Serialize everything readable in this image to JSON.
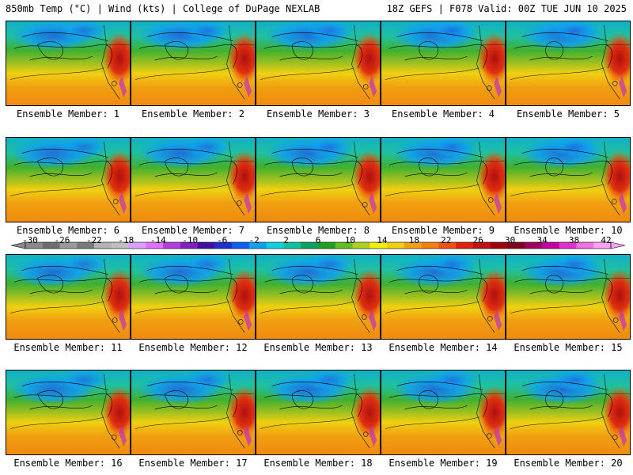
{
  "header": {
    "left": "850mb Temp (°C) | Wind (kts) | College of DuPage NEXLAB",
    "right": "18Z GEFS | F078 Valid: 00Z TUE JUN 10 2025"
  },
  "members": [
    "Ensemble Member: 1",
    "Ensemble Member: 2",
    "Ensemble Member: 3",
    "Ensemble Member: 4",
    "Ensemble Member: 5",
    "Ensemble Member: 6",
    "Ensemble Member: 7",
    "Ensemble Member: 8",
    "Ensemble Member: 9",
    "Ensemble Member: 10",
    "Ensemble Member: 11",
    "Ensemble Member: 12",
    "Ensemble Member: 13",
    "Ensemble Member: 14",
    "Ensemble Member: 15",
    "Ensemble Member: 16",
    "Ensemble Member: 17",
    "Ensemble Member: 18",
    "Ensemble Member: 19",
    "Ensemble Member: 20"
  ],
  "colorbar": {
    "labels": [
      "-30",
      "-26",
      "-22",
      "-18",
      "-14",
      "-10",
      "-6",
      "-2",
      "2",
      "6",
      "10",
      "14",
      "18",
      "22",
      "26",
      "30",
      "34",
      "38",
      "42"
    ],
    "colors": [
      "#8a8a8a",
      "#6e6e6e",
      "#9a9a9a",
      "#7a7a7a",
      "#b4b4b4",
      "#c0c0c0",
      "#d8a0ff",
      "#e070ff",
      "#b040e0",
      "#8020c0",
      "#4010a0",
      "#2030d0",
      "#1060f0",
      "#10a0f0",
      "#10d0e0",
      "#10c0a0",
      "#10a060",
      "#20a020",
      "#60c020",
      "#b0d020",
      "#f0f010",
      "#f0d010",
      "#f0a010",
      "#f08010",
      "#f05010",
      "#e02010",
      "#c01010",
      "#a00010",
      "#800020",
      "#a00060",
      "#c000a0",
      "#e030d0",
      "#f070e0",
      "#ffa0f0"
    ]
  }
}
